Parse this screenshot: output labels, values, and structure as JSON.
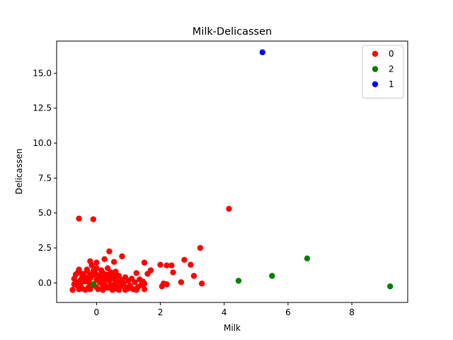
{
  "chart_data": {
    "type": "scatter",
    "title": "Milk-Delicassen",
    "xlabel": "Milk",
    "ylabel": "Delicassen",
    "xlim": [
      -1.25,
      9.75
    ],
    "ylim": [
      -1.4,
      17.3
    ],
    "x_ticks": [
      0,
      2,
      4,
      6,
      8
    ],
    "x_tick_labels": [
      "0",
      "2",
      "4",
      "6",
      "8"
    ],
    "y_ticks": [
      0.0,
      2.5,
      5.0,
      7.5,
      10.0,
      12.5,
      15.0
    ],
    "y_tick_labels": [
      "0.0",
      "2.5",
      "5.0",
      "7.5",
      "10.0",
      "12.5",
      "15.0"
    ],
    "grid": false,
    "legend_position": "top-right",
    "series": [
      {
        "name": "0",
        "color": "#ff0000",
        "points": [
          [
            -0.55,
            4.6
          ],
          [
            -0.1,
            4.55
          ],
          [
            4.15,
            5.3
          ],
          [
            3.25,
            2.5
          ],
          [
            0.4,
            2.25
          ],
          [
            0.8,
            1.9
          ],
          [
            2.75,
            1.65
          ],
          [
            0.55,
            1.5
          ],
          [
            1.5,
            1.45
          ],
          [
            2.0,
            1.3
          ],
          [
            2.2,
            1.25
          ],
          [
            2.35,
            1.25
          ],
          [
            2.95,
            1.3
          ],
          [
            0.25,
            1.7
          ],
          [
            0.0,
            1.45
          ],
          [
            -0.2,
            1.55
          ],
          [
            0.35,
            1.05
          ],
          [
            1.7,
            0.9
          ],
          [
            1.6,
            0.65
          ],
          [
            2.4,
            0.75
          ],
          [
            1.25,
            0.7
          ],
          [
            0.6,
            0.8
          ],
          [
            3.05,
            0.5
          ],
          [
            2.65,
            0.05
          ],
          [
            3.3,
            -0.05
          ],
          [
            2.1,
            -0.05
          ],
          [
            2.2,
            -0.1
          ],
          [
            2.05,
            -0.25
          ],
          [
            -0.7,
            0.3
          ],
          [
            -0.65,
            0.6
          ],
          [
            -0.6,
            -0.2
          ],
          [
            -0.55,
            0.95
          ],
          [
            -0.5,
            0.2
          ],
          [
            -0.45,
            -0.4
          ],
          [
            -0.4,
            0.5
          ],
          [
            -0.35,
            0.1
          ],
          [
            -0.3,
            0.85
          ],
          [
            -0.25,
            -0.3
          ],
          [
            -0.2,
            0.3
          ],
          [
            -0.15,
            1.25
          ],
          [
            -0.1,
            -0.1
          ],
          [
            -0.05,
            0.7
          ],
          [
            0.0,
            0.2
          ],
          [
            0.05,
            -0.45
          ],
          [
            0.1,
            0.4
          ],
          [
            0.15,
            0.9
          ],
          [
            0.2,
            -0.2
          ],
          [
            0.25,
            0.25
          ],
          [
            0.3,
            0.6
          ],
          [
            0.35,
            -0.35
          ],
          [
            0.4,
            0.15
          ],
          [
            0.45,
            0.45
          ],
          [
            0.5,
            -0.15
          ],
          [
            0.55,
            0.3
          ],
          [
            0.6,
            -0.4
          ],
          [
            0.65,
            0.1
          ],
          [
            0.7,
            0.5
          ],
          [
            0.75,
            -0.25
          ],
          [
            0.8,
            0.2
          ],
          [
            0.85,
            -0.05
          ],
          [
            0.9,
            0.4
          ],
          [
            0.95,
            -0.35
          ],
          [
            1.0,
            0.15
          ],
          [
            1.05,
            -0.2
          ],
          [
            1.1,
            0.3
          ],
          [
            1.15,
            -0.45
          ],
          [
            1.2,
            0.05
          ],
          [
            1.3,
            -0.3
          ],
          [
            1.35,
            0.25
          ],
          [
            1.4,
            -0.15
          ],
          [
            1.45,
            0.1
          ],
          [
            1.5,
            -0.45
          ],
          [
            1.5,
            -0.05
          ],
          [
            -0.75,
            -0.5
          ],
          [
            -0.7,
            -0.1
          ],
          [
            -0.6,
            0.7
          ],
          [
            -0.55,
            -0.45
          ],
          [
            -0.45,
            0.4
          ],
          [
            -0.35,
            -0.5
          ],
          [
            -0.3,
            0.2
          ],
          [
            -0.2,
            -0.45
          ],
          [
            -0.1,
            0.55
          ],
          [
            0.0,
            -0.3
          ],
          [
            0.1,
            0.05
          ],
          [
            0.2,
            -0.5
          ],
          [
            0.3,
            0.35
          ],
          [
            0.5,
            -0.5
          ],
          [
            0.6,
            0.05
          ],
          [
            0.7,
            -0.5
          ],
          [
            0.8,
            -0.1
          ],
          [
            0.9,
            -0.5
          ],
          [
            1.0,
            -0.4
          ],
          [
            1.25,
            -0.5
          ],
          [
            -0.65,
            0.05
          ],
          [
            -0.5,
            -0.05
          ],
          [
            -0.4,
            0.25
          ],
          [
            -0.25,
            0.1
          ],
          [
            -0.15,
            -0.2
          ],
          [
            0.05,
            0.3
          ],
          [
            0.15,
            0.5
          ],
          [
            0.4,
            -0.25
          ],
          [
            0.55,
            0.6
          ],
          [
            0.65,
            -0.3
          ],
          [
            -0.3,
            0.95
          ],
          [
            0.0,
            1.05
          ],
          [
            0.2,
            0.7
          ],
          [
            -0.1,
            0.85
          ],
          [
            0.45,
            0.75
          ],
          [
            -0.45,
            0.65
          ],
          [
            -0.2,
            0.6
          ],
          [
            0.05,
            0.55
          ],
          [
            -0.35,
            0.4
          ],
          [
            0.25,
            -0.1
          ]
        ]
      },
      {
        "name": "2",
        "color": "#008000",
        "points": [
          [
            -0.1,
            -0.1
          ],
          [
            4.45,
            0.15
          ],
          [
            5.5,
            0.5
          ],
          [
            6.6,
            1.75
          ],
          [
            9.2,
            -0.25
          ]
        ]
      },
      {
        "name": "1",
        "color": "#0000ff",
        "points": [
          [
            5.2,
            16.5
          ]
        ]
      }
    ]
  }
}
